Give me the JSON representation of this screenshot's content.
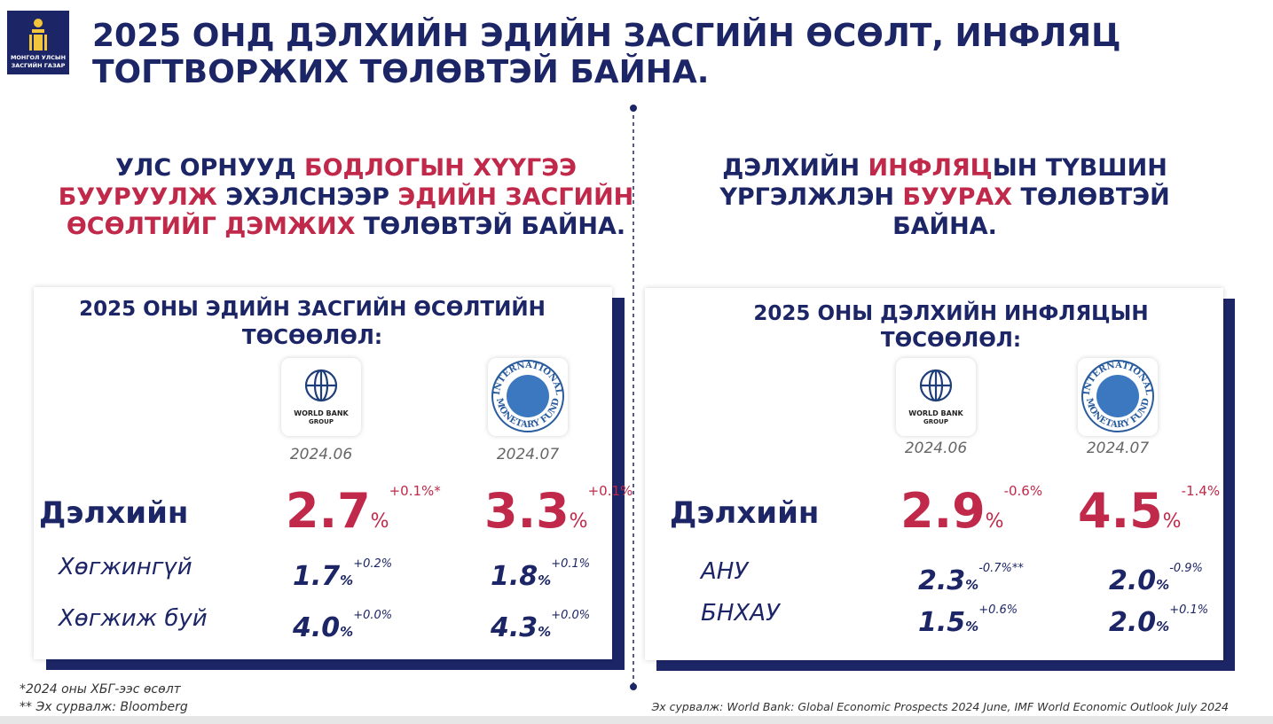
{
  "header": {
    "logo_text": [
      "МОНГОЛ УЛСЫН",
      "ЗАСГИЙН ГАЗАР"
    ],
    "title": [
      "2025 ОНД ДЭЛХИЙН ЭДИЙН ЗАСГИЙН ӨСӨЛТ, ИНФЛЯЦ",
      "ТОГТВОРЖИХ ТӨЛӨВТЭЙ БАЙНА."
    ]
  },
  "logos": {
    "world_bank": [
      "WORLD BANK",
      "GROUP"
    ],
    "imf": [
      "INTERNATIONAL",
      "MONETARY FUND"
    ]
  },
  "panels": [
    {
      "heading": [
        [
          {
            "text": "УЛС ОРНУУД ",
            "highlight": false
          },
          {
            "text": "БОДЛОГЫН ХҮҮГЭЭ",
            "highlight": true
          }
        ],
        [
          {
            "text": "БУУРУУЛЖ",
            "highlight": true
          },
          {
            "text": " ЭХЭЛСНЭЭР ",
            "highlight": false
          },
          {
            "text": "ЭДИЙН ЗАСГИЙН",
            "highlight": true
          }
        ],
        [
          {
            "text": "ӨСӨЛТИЙГ ДЭМЖИХ",
            "highlight": true
          },
          {
            "text": " ТӨЛӨВТЭЙ БАЙНА.",
            "highlight": false
          }
        ]
      ],
      "card_title": [
        "2025 ОНЫ ЭДИЙН ЗАСГИЙН ӨСӨЛТИЙН",
        "ТӨСӨӨЛӨЛ:"
      ],
      "sources": [
        {
          "logo": "world_bank",
          "date": "2024.06"
        },
        {
          "logo": "imf",
          "date": "2024.07"
        }
      ],
      "rows": [
        {
          "label": "Дэлхийн",
          "main": true,
          "cells": [
            {
              "value": "2.7",
              "unit": "%",
              "change": "+0.1%*"
            },
            {
              "value": "3.3",
              "unit": "%",
              "change": "+0.1%"
            }
          ]
        },
        {
          "label": "Хөгжингүй",
          "main": false,
          "cells": [
            {
              "value": "1.7",
              "unit": "%",
              "change": "+0.2%"
            },
            {
              "value": "1.8",
              "unit": "%",
              "change": "+0.1%"
            }
          ]
        },
        {
          "label": "Хөгжиж буй",
          "main": false,
          "cells": [
            {
              "value": "4.0",
              "unit": "%",
              "change": "+0.0%"
            },
            {
              "value": "4.3",
              "unit": "%",
              "change": "+0.0%"
            }
          ]
        }
      ]
    },
    {
      "heading": [
        [
          {
            "text": "ДЭЛХИЙН ",
            "highlight": false
          },
          {
            "text": "ИНФЛЯЦ",
            "highlight": true
          },
          {
            "text": "ЫН ТҮВШИН",
            "highlight": false
          }
        ],
        [
          {
            "text": "ҮРГЭЛЖЛЭН ",
            "highlight": false
          },
          {
            "text": "БУУРАХ",
            "highlight": true
          },
          {
            "text": " ТӨЛӨВТЭЙ",
            "highlight": false
          }
        ],
        [
          {
            "text": "БАЙНА.",
            "highlight": false
          }
        ]
      ],
      "card_title": [
        "2025 ОНЫ ДЭЛХИЙН ИНФЛЯЦЫН",
        "ТӨСӨӨЛӨЛ:"
      ],
      "sources": [
        {
          "logo": "world_bank",
          "date": "2024.06"
        },
        {
          "logo": "imf",
          "date": "2024.07"
        }
      ],
      "rows": [
        {
          "label": "Дэлхийн",
          "main": true,
          "cells": [
            {
              "value": "2.9",
              "unit": "%",
              "change": "-0.6%"
            },
            {
              "value": "4.5",
              "unit": "%",
              "change": "-1.4%"
            }
          ]
        },
        {
          "label": "АНУ",
          "main": false,
          "cells": [
            {
              "value": "2.3",
              "unit": "%",
              "change": "-0.7%**"
            },
            {
              "value": "2.0",
              "unit": "%",
              "change": "-0.9%"
            }
          ]
        },
        {
          "label": "БНХАУ",
          "main": false,
          "cells": [
            {
              "value": "1.5",
              "unit": "%",
              "change": "+0.6%"
            },
            {
              "value": "2.0",
              "unit": "%",
              "change": "+0.1%"
            }
          ]
        }
      ]
    }
  ],
  "footnotes": [
    "*2024 оны ХБГ-ээс өсөлт",
    "** Эх сурвалж: Bloomberg"
  ],
  "source": "Эх сурвалж: World Bank: Global Economic Prospects 2024 June, IMF World Economic Outlook July 2024"
}
